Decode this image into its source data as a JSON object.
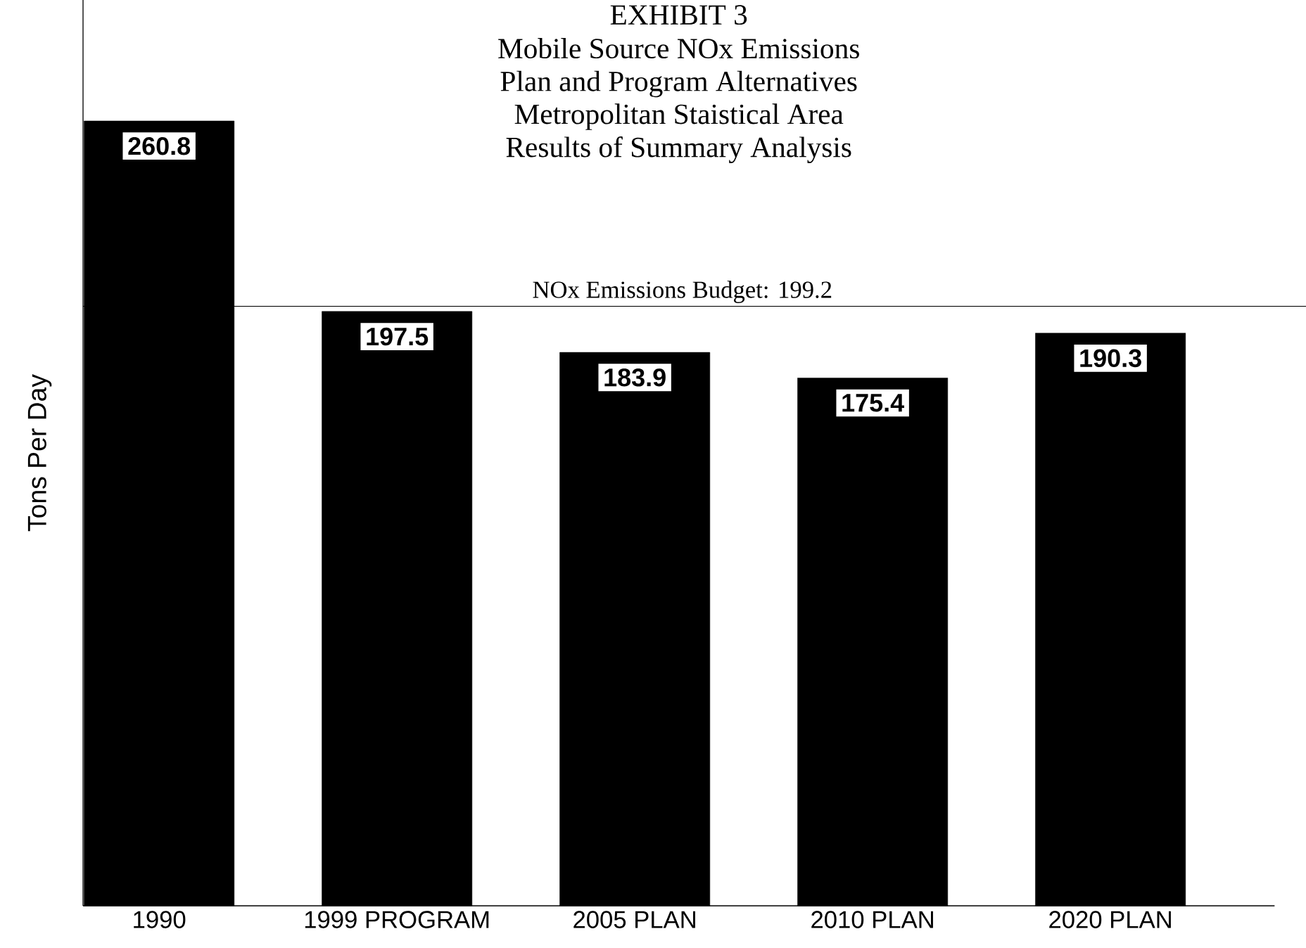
{
  "chart_data": {
    "type": "bar",
    "title": "EXHIBIT 3",
    "subtitle": "Mobile Source NOx Emissions",
    "annotations": [
      "Plan and Program Alternatives",
      "Metropolitan Staistical Area",
      "Results of Summary Analysis"
    ],
    "ylabel": "Tons Per Day",
    "categories": [
      "1990",
      "1999 PROGRAM",
      "2005 PLAN",
      "2010 PLAN",
      "2020 PLAN"
    ],
    "values": [
      260.8,
      197.5,
      183.9,
      175.4,
      190.3
    ],
    "color": "#000000",
    "data_labels": true,
    "ylim": [
      0,
      301
    ],
    "ref_lines": [
      {
        "axis": "y",
        "value": 199.2,
        "label": "NOx Emissions Budget: 199.2",
        "color": "#000000"
      }
    ]
  }
}
